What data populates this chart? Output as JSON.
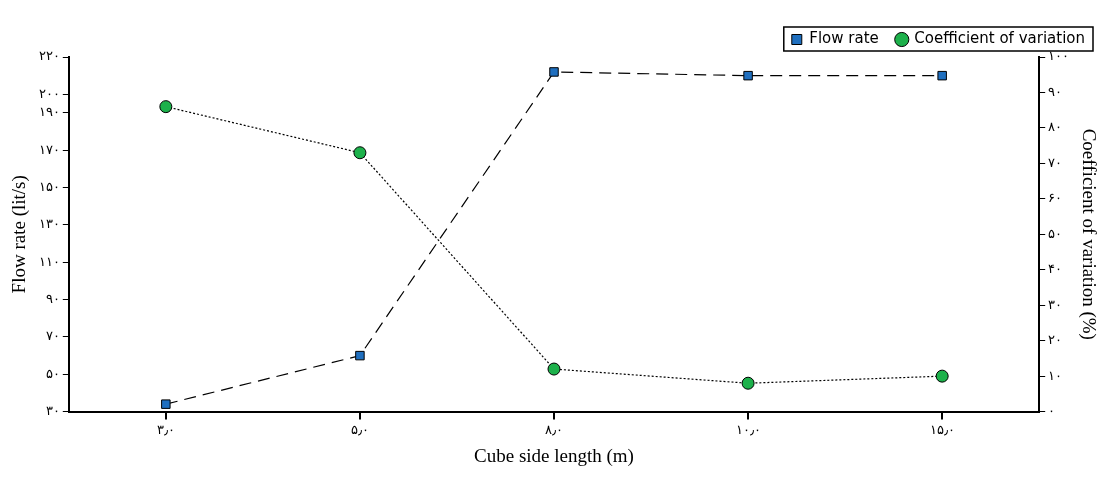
{
  "chart_data": {
    "type": "line",
    "xlabel": "Cube side length (m)",
    "ylabel": "Flow rate (lit/s)",
    "y2label": "Coefficient of variation (%)",
    "categories": [
      "۳٫۰",
      "۵٫۰",
      "۸٫۰",
      "۱۰٫۰",
      "۱۵٫۰"
    ],
    "series": [
      {
        "name": "Flow rate",
        "color": "#1f6fbf",
        "values": [
          34,
          60,
          212,
          210,
          210
        ],
        "marker": "square",
        "line_style": "dashed"
      },
      {
        "name": "Coefficient of variation",
        "color": "#1db14b",
        "values": [
          86,
          73,
          12,
          8,
          10
        ],
        "marker": "circle",
        "line_style": "dotted",
        "axis": "y2"
      }
    ],
    "ylim": [
      30,
      220
    ],
    "yticks": [
      {
        "value": 30,
        "label": "۳۰"
      },
      {
        "value": 50,
        "label": "۵۰"
      },
      {
        "value": 70,
        "label": "۷۰"
      },
      {
        "value": 90,
        "label": "۹۰"
      },
      {
        "value": 110,
        "label": "۱۱۰"
      },
      {
        "value": 130,
        "label": "۱۳۰"
      },
      {
        "value": 150,
        "label": "۱۵۰"
      },
      {
        "value": 170,
        "label": "۱۷۰"
      },
      {
        "value": 190,
        "label": "۱۹۰"
      },
      {
        "value": 200,
        "label": "۲۰۰"
      },
      {
        "value": 220,
        "label": "۲۲۰"
      }
    ],
    "y2lim": [
      0,
      100
    ],
    "y2ticks": [
      {
        "value": 0,
        "label": "۰"
      },
      {
        "value": 10,
        "label": "۱۰"
      },
      {
        "value": 20,
        "label": "۲۰"
      },
      {
        "value": 30,
        "label": "۳۰"
      },
      {
        "value": 40,
        "label": "۴۰"
      },
      {
        "value": 50,
        "label": "۵۰"
      },
      {
        "value": 60,
        "label": "۶۰"
      },
      {
        "value": 70,
        "label": "۷۰"
      },
      {
        "value": 80,
        "label": "۸۰"
      },
      {
        "value": 90,
        "label": "۹۰"
      },
      {
        "value": 100,
        "label": "۱۰۰"
      }
    ],
    "grid": false,
    "legend": "top right"
  }
}
